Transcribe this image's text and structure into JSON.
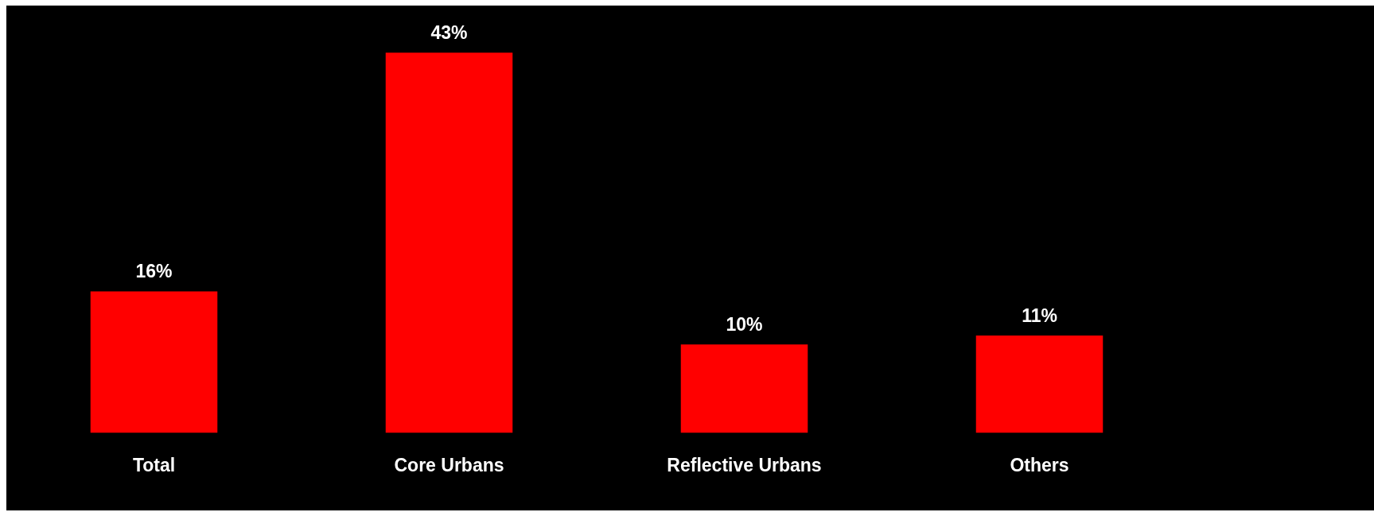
{
  "chart_data": {
    "type": "bar",
    "categories": [
      "Total",
      "Core Urbans",
      "Reflective Urbans",
      "Others"
    ],
    "values": [
      16,
      43,
      10,
      11
    ],
    "color": "#ff0000",
    "value_labels": [
      "16%",
      "43%",
      "10%",
      "11%"
    ],
    "legend": false
  }
}
